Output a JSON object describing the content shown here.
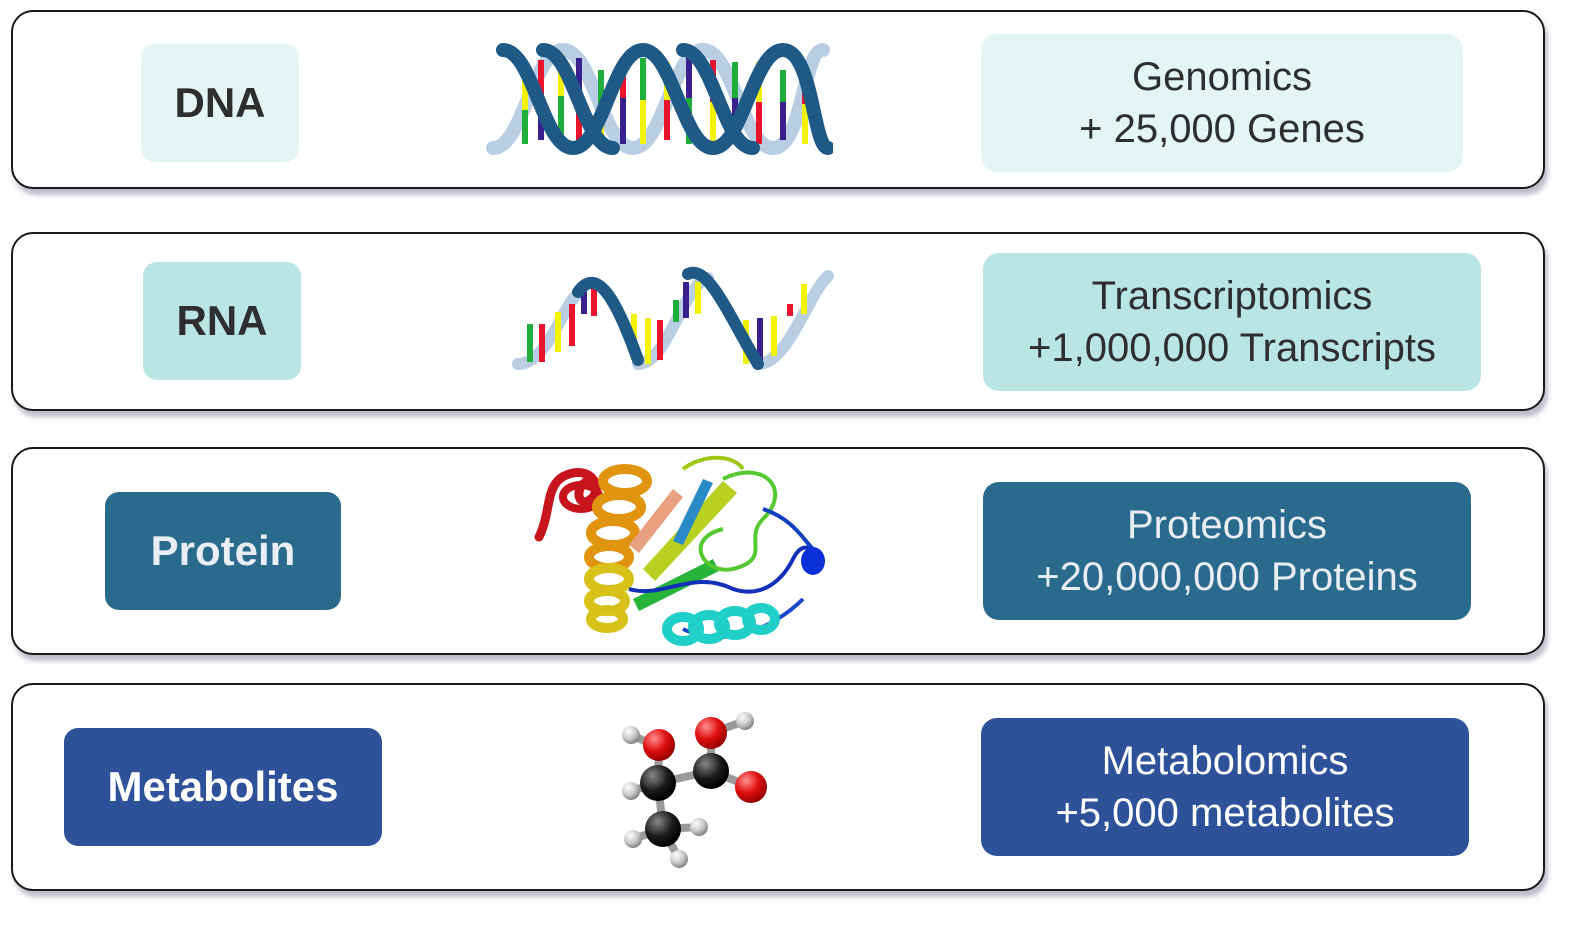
{
  "rows": [
    {
      "label": "DNA",
      "omics": "Genomics",
      "count": "+ 25,000 Genes",
      "picture": "dna-double-helix"
    },
    {
      "label": "RNA",
      "omics": "Transcriptomics",
      "count": "+1,000,000 Transcripts",
      "picture": "rna-single-strand"
    },
    {
      "label": "Protein",
      "omics": "Proteomics",
      "count": "+20,000,000 Proteins",
      "picture": "protein-ribbon-structure"
    },
    {
      "label": "Metabolites",
      "omics": "Metabolomics",
      "count": "+5,000 metabolites",
      "picture": "lactic-acid-molecule"
    }
  ],
  "colors": {
    "dna_fill": "#e3f5f5",
    "rna_fill": "#b9e5e4",
    "protein_fill": "#2a6a8c",
    "metabolite_fill": "#2e5299",
    "helix_backbone": "#1f5a86",
    "base_red": "#e8142c",
    "base_yellow": "#f2f20a",
    "base_green": "#1fae3a",
    "base_purple": "#3a1f8f"
  }
}
